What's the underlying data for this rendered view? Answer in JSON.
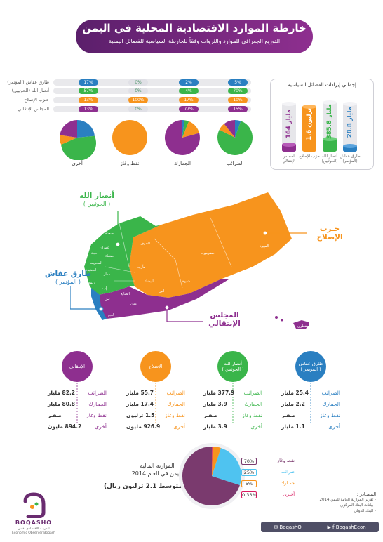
{
  "header": {
    "title": "خارطة الموارد الاقتصادية المحلية في اليمن",
    "subtitle_line1": "التوزيع الجغرافي للموارد والثروات وفقاً للخارطة السياسية للفصائل اليمنية",
    "subtitle_line2": ""
  },
  "table": {
    "rows": [
      {
        "label": "طارق عفاش (المؤتمر)",
        "color": "#2a7fc1",
        "cells": [
          "5%",
          "2%",
          "0%",
          "17%"
        ]
      },
      {
        "label": "أنصار الله (الحوثيين)",
        "color": "#3ab54a",
        "cells": [
          "70%",
          "4%",
          "0%",
          "57%"
        ]
      },
      {
        "label": "حـزب الإصلاح",
        "color": "#f7941d",
        "cells": [
          "10%",
          "17%",
          "100%",
          "13%"
        ]
      },
      {
        "label": "المجلس الإنتقالي",
        "color": "#8e2f8f",
        "cells": [
          "15%",
          "77%",
          "0%",
          "13%"
        ]
      }
    ],
    "pie_labels": [
      "الضرائب",
      "الجمارك",
      "نفط وغاز",
      "أخرى"
    ]
  },
  "cylinders": {
    "title": "إجمالي إيرادات الفصائل السياسية",
    "items": [
      {
        "value": "28.8 مليار",
        "caption": "طارق عفاش (المؤتمر)",
        "color": "#2a7fc1"
      },
      {
        "value": "385.8 مليار",
        "caption": "أنصار الله (الحوثيين)",
        "color": "#3ab54a"
      },
      {
        "value": "1.6 ترليون",
        "caption": "حزب الإصلاح",
        "color": "#f7941d"
      },
      {
        "value": "164 مليار",
        "caption": "المجلس الإنتقالي",
        "color": "#8e2f8f"
      }
    ]
  },
  "map": {
    "ansar": {
      "line1": "أنصار الله",
      "line2": "( الحوثيين )"
    },
    "islah": {
      "line1": "حـزب",
      "line2": "الإصلاح"
    },
    "tareq": {
      "line1": "طارق عفاش",
      "line2": "( المؤتمر )"
    },
    "stc": {
      "line1": "المجلس",
      "line2": "الإنتقالي"
    },
    "governorates": [
      "صعدة",
      "الجوف",
      "عمران",
      "صنعاء",
      "حجة",
      "مأرب",
      "المهرة",
      "حضرموت",
      "شبوة",
      "البيضاء",
      "ذمار",
      "إب",
      "تعز",
      "الضالع",
      "لحج",
      "عدن",
      "أبين",
      "سقطرى",
      "الحديدة",
      "ريمة",
      "المحويت"
    ]
  },
  "factions": [
    {
      "name": "طارق عفاش",
      "sub": "( المؤتمر )",
      "color": "#2a7fc1",
      "stats": [
        [
          "الضرائب",
          "25.4 مليار"
        ],
        [
          "الجمارك",
          "2.2 مليار"
        ],
        [
          "نفط وغاز",
          "صفـر"
        ],
        [
          "أخرى",
          "1.1 مليار"
        ]
      ]
    },
    {
      "name": "أنصار الله",
      "sub": "( الحوثيين )",
      "color": "#3ab54a",
      "stats": [
        [
          "الضرائب",
          "377.9 مليار"
        ],
        [
          "الجمارك",
          "3.9 مليار"
        ],
        [
          "نفط وغاز",
          "صفـر"
        ],
        [
          "أخرى",
          "3.9 مليار"
        ]
      ]
    },
    {
      "name": "الإصلاح",
      "sub": "",
      "color": "#f7941d",
      "stats": [
        [
          "الضرائب",
          "55.7 مليار"
        ],
        [
          "الجمارك",
          "17.4 مليار"
        ],
        [
          "نفط وغاز",
          "1.5 ترليون"
        ],
        [
          "أخرى",
          "926.9 مليون"
        ]
      ]
    },
    {
      "name": "الإنتقالي",
      "sub": "",
      "color": "#8e2f8f",
      "stats": [
        [
          "الضرائب",
          "82.2 مليار"
        ],
        [
          "الجمارك",
          "80.8 مليار"
        ],
        [
          "نفط وغاز",
          "صفـر"
        ],
        [
          "أخرى",
          "894.2 مليون"
        ]
      ]
    }
  ],
  "budget": {
    "title_line1": "الموازنة المالية",
    "title_line2": "لليمن في العام 2014",
    "strong": "(متوسط 2.1 ترليون ريال)",
    "items": [
      {
        "label": "نفط وغاز",
        "pct": "70%",
        "color": "#7a3a6e"
      },
      {
        "label": "ضرائب",
        "pct": "25%",
        "color": "#4fc3f0"
      },
      {
        "label": "جمـارك",
        "pct": "5%",
        "color": "#f7941d"
      },
      {
        "label": "أخـرى",
        "pct": "0.33%",
        "color": "#d81b60"
      }
    ]
  },
  "sources": {
    "title": "المصـادر :",
    "lines": [
      "- تقرير الموازنة العامة لليمن 2014",
      "- بيانات البنك المركزي",
      "- البنك الدولي"
    ]
  },
  "social": {
    "handle1": "BoqashEcon",
    "handle2": "BoqashO"
  },
  "logo": {
    "word": "BOQASHO",
    "sub": "المرصد الاقتصادي نقاش",
    "sub2": "Economic Observer Boqash"
  }
}
